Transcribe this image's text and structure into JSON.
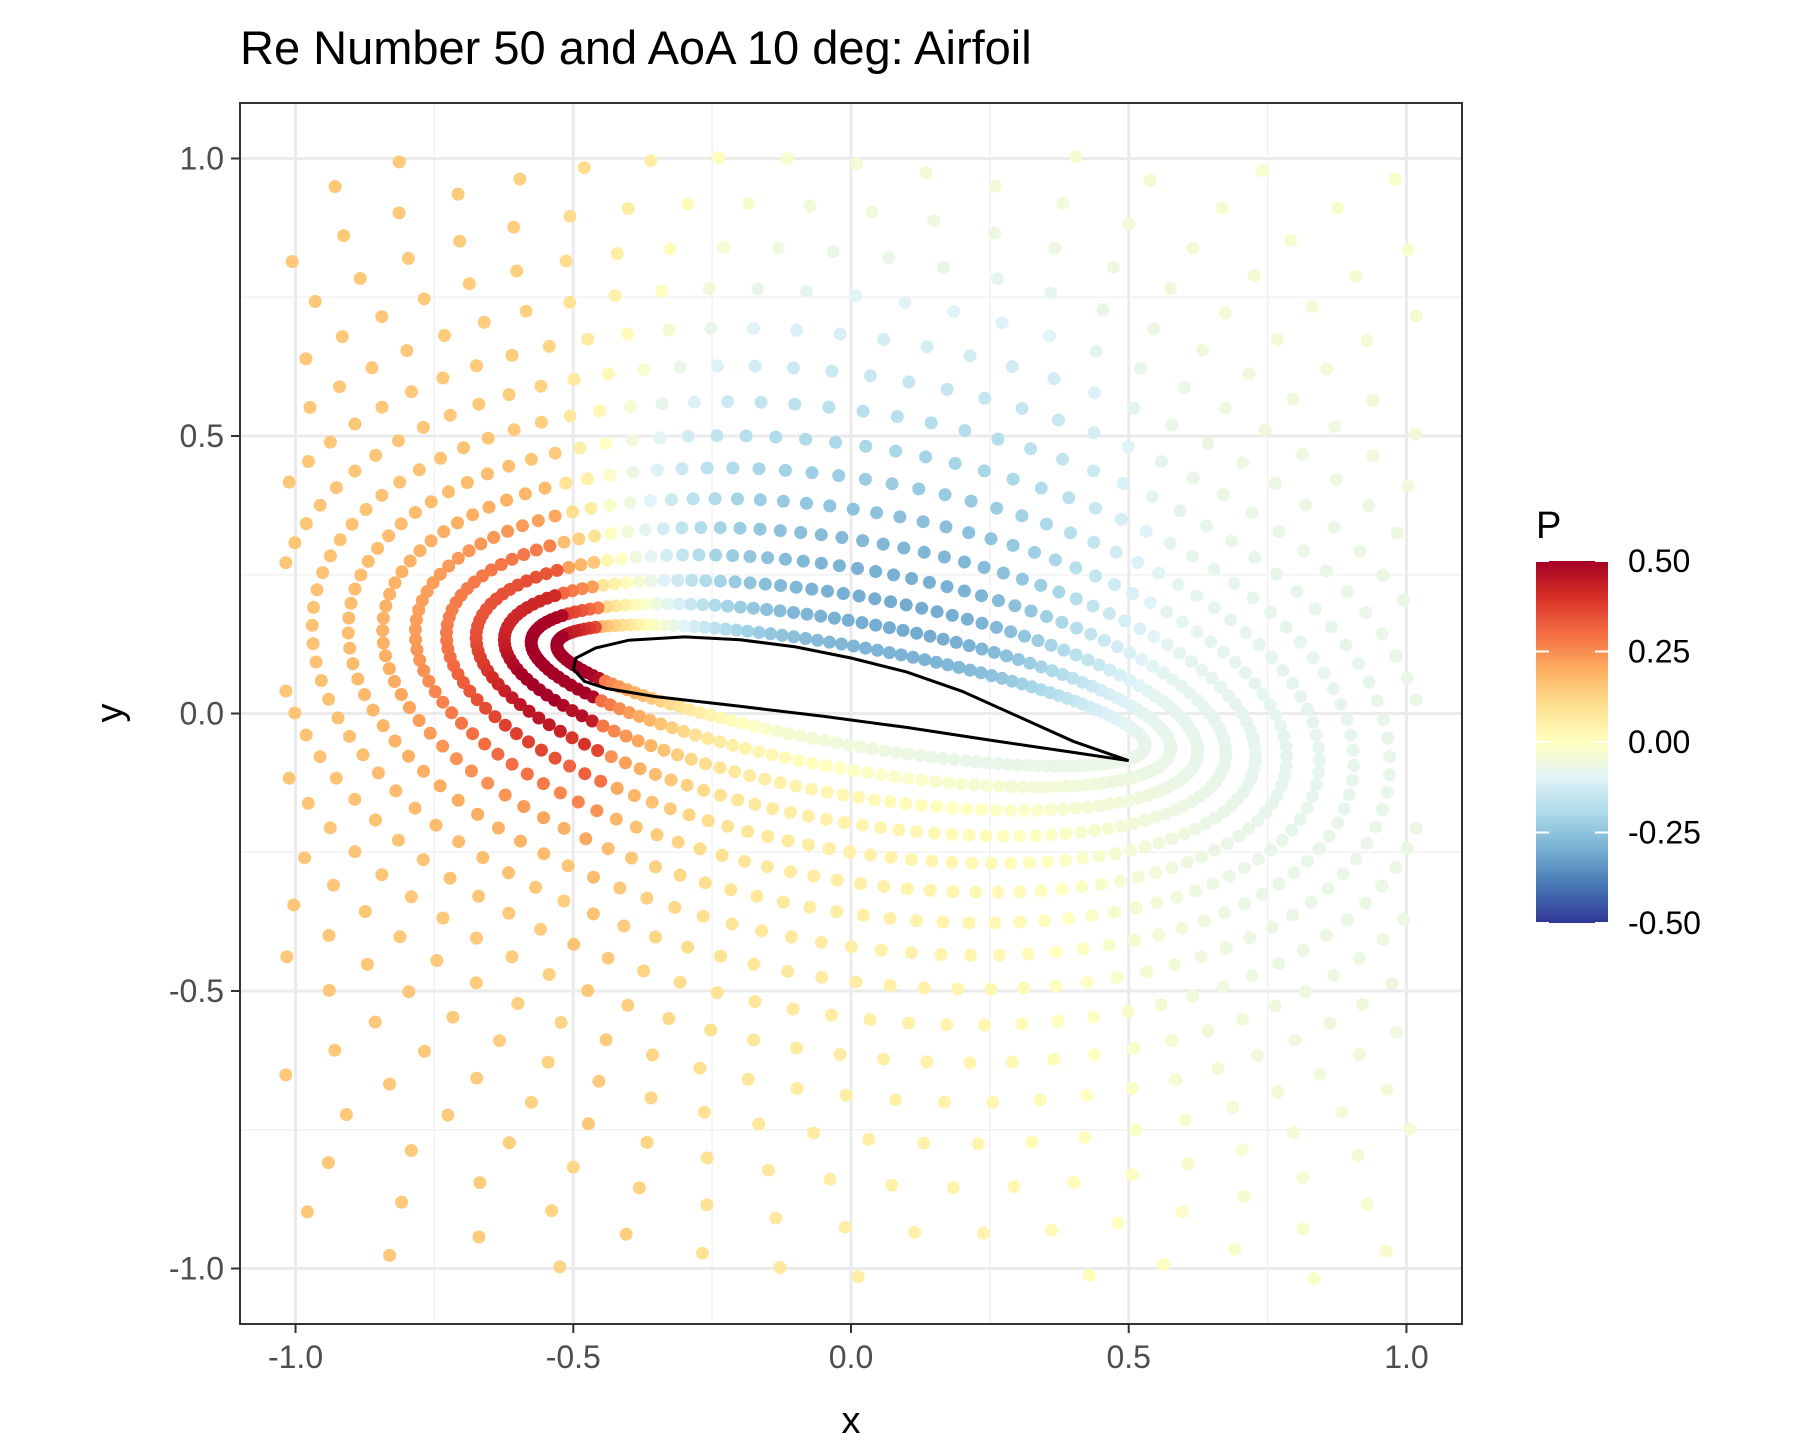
{
  "chart_data": {
    "type": "scatter",
    "title": "Re Number 50 and AoA 10 deg: Airfoil",
    "xlabel": "x",
    "ylabel": "y",
    "xlim": [
      -1.1,
      1.1
    ],
    "ylim": [
      -1.1,
      1.1
    ],
    "x_ticks": [
      "-1.0",
      "-0.5",
      "0.0",
      "0.5",
      "1.0"
    ],
    "y_ticks": [
      "-1.0",
      "-0.5",
      "0.0",
      "0.5",
      "1.0"
    ],
    "x_tick_values": [
      -1.0,
      -0.5,
      0.0,
      0.5,
      1.0
    ],
    "y_tick_values": [
      -1.0,
      -0.5,
      0.0,
      0.5,
      1.0
    ],
    "grid": true,
    "theme": "bw",
    "color_legend": {
      "title": "P",
      "position": "right",
      "limits": [
        -0.5,
        0.5
      ],
      "labels": [
        "0.50",
        "0.25",
        "0.00",
        "-0.25",
        "-0.50"
      ],
      "label_values": [
        0.5,
        0.25,
        0.0,
        -0.25,
        -0.5
      ],
      "palette": [
        "#313695",
        "#4575b4",
        "#74add1",
        "#abd9e9",
        "#e0f3f8",
        "#ffffbf",
        "#fee090",
        "#fdae61",
        "#f46d43",
        "#d73027",
        "#a50026"
      ]
    },
    "pressure_field": {
      "leading_edge": {
        "x": -0.5,
        "y": 0.09
      },
      "trailing_edge": {
        "x": 0.5,
        "y": -0.085
      },
      "leading_edge_peak": 0.5,
      "upper_surface_min": -0.35,
      "far_field_upstream": 0.15,
      "far_field_downstream": -0.1,
      "lower_surface_value": 0.05
    },
    "airfoil_outline": [
      {
        "x": 0.5,
        "y": -0.085
      },
      {
        "x": 0.4,
        "y": -0.05
      },
      {
        "x": 0.3,
        "y": -0.005
      },
      {
        "x": 0.2,
        "y": 0.04
      },
      {
        "x": 0.1,
        "y": 0.075
      },
      {
        "x": 0.0,
        "y": 0.1
      },
      {
        "x": -0.1,
        "y": 0.12
      },
      {
        "x": -0.2,
        "y": 0.133
      },
      {
        "x": -0.3,
        "y": 0.138
      },
      {
        "x": -0.4,
        "y": 0.132
      },
      {
        "x": -0.46,
        "y": 0.118
      },
      {
        "x": -0.495,
        "y": 0.1
      },
      {
        "x": -0.5,
        "y": 0.08
      },
      {
        "x": -0.48,
        "y": 0.058
      },
      {
        "x": -0.44,
        "y": 0.045
      },
      {
        "x": -0.35,
        "y": 0.03
      },
      {
        "x": -0.2,
        "y": 0.013
      },
      {
        "x": -0.05,
        "y": -0.005
      },
      {
        "x": 0.1,
        "y": -0.025
      },
      {
        "x": 0.25,
        "y": -0.048
      },
      {
        "x": 0.4,
        "y": -0.07
      },
      {
        "x": 0.5,
        "y": -0.085
      }
    ]
  }
}
